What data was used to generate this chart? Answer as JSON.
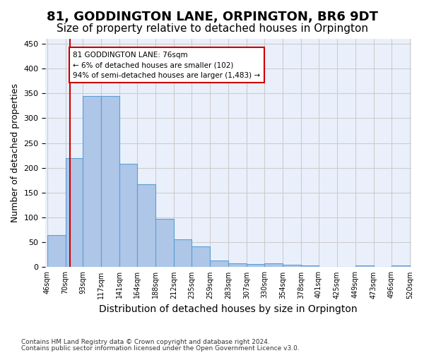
{
  "title": "81, GODDINGTON LANE, ORPINGTON, BR6 9DT",
  "subtitle": "Size of property relative to detached houses in Orpington",
  "xlabel": "Distribution of detached houses by size in Orpington",
  "ylabel": "Number of detached properties",
  "bar_values": [
    65,
    220,
    345,
    345,
    208,
    167,
    97,
    56,
    42,
    13,
    8,
    6,
    8,
    5,
    4,
    0,
    0,
    4,
    0,
    3
  ],
  "bar_color": "#aec6e8",
  "bar_edge_color": "#5a9fd4",
  "grid_color": "#cccccc",
  "bg_color": "#eaf0fb",
  "property_line_color": "#cc0000",
  "annotation_text": "81 GODDINGTON LANE: 76sqm\n← 6% of detached houses are smaller (102)\n94% of semi-detached houses are larger (1,483) →",
  "annotation_box_color": "#ffffff",
  "annotation_box_edge": "#cc0000",
  "footnote1": "Contains HM Land Registry data © Crown copyright and database right 2024.",
  "footnote2": "Contains public sector information licensed under the Open Government Licence v3.0.",
  "ylim": [
    0,
    460
  ],
  "bin_edges": [
    46,
    70,
    93,
    117,
    141,
    164,
    188,
    212,
    235,
    259,
    283,
    307,
    330,
    354,
    378,
    401,
    425,
    449,
    473,
    496,
    520
  ],
  "title_fontsize": 13,
  "subtitle_fontsize": 11,
  "ylabel_fontsize": 9,
  "xlabel_fontsize": 10
}
